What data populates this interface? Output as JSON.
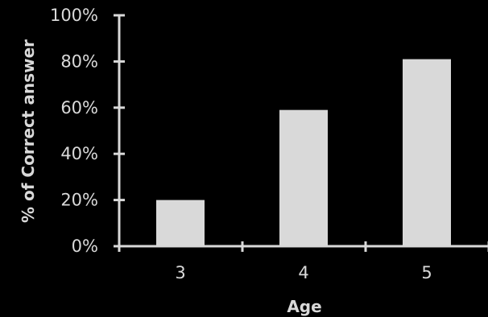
{
  "chart_data": {
    "type": "bar",
    "categories": [
      "3",
      "4",
      "5"
    ],
    "values": [
      20,
      59,
      81
    ],
    "xlabel": "Age",
    "ylabel": "% of Correct answer",
    "ylim": [
      0,
      100
    ],
    "yticks": [
      "0%",
      "20%",
      "40%",
      "60%",
      "80%",
      "100%"
    ],
    "grid": false,
    "colors": {
      "background": "#000000",
      "bar": "#d9d9d9",
      "axis": "#d9d9d9",
      "text": "#d9d9d9"
    }
  }
}
